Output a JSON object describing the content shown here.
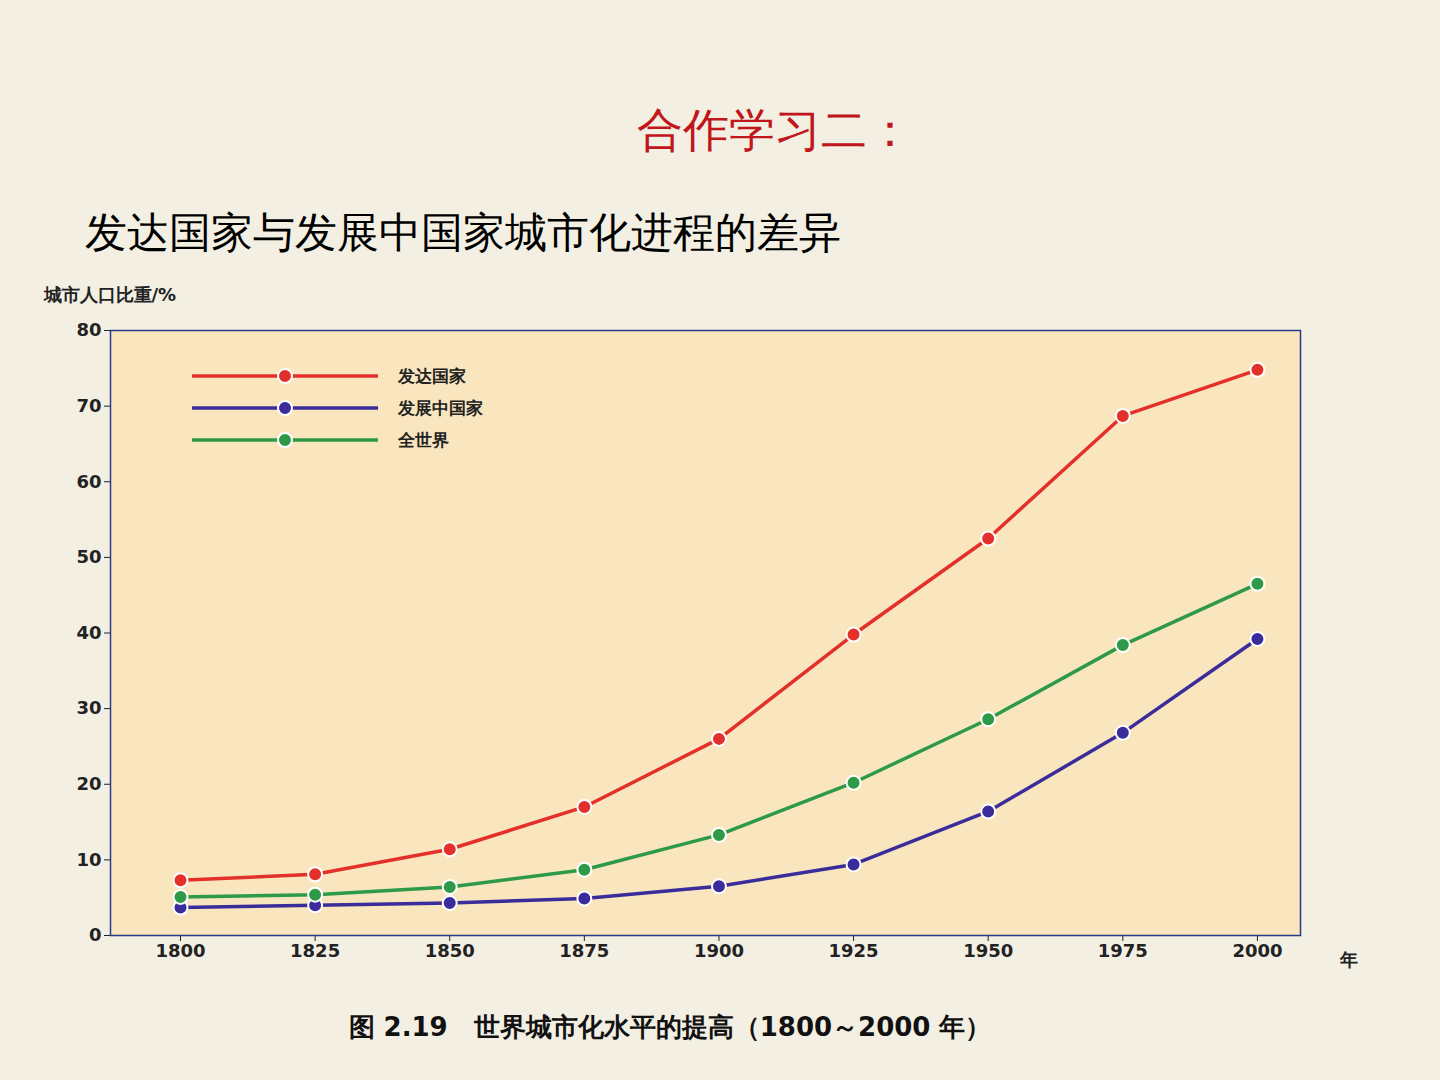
{
  "chart_data": {
    "type": "line",
    "title": "合作学习二：",
    "subtitle": "发达国家与发展中国家城市化进程的差异",
    "caption": "图 2.19　世界城市化水平的提高（1800～2000 年）",
    "x_label": "年",
    "y_label": "城市人口比重/%",
    "x": [
      1800,
      1825,
      1850,
      1875,
      1900,
      1925,
      1950,
      1975,
      2000
    ],
    "series": [
      {
        "name": "发达国家",
        "color": "#e3302a",
        "values": [
          7.3,
          8.1,
          11.4,
          17.0,
          26.0,
          39.8,
          52.5,
          68.7,
          74.8
        ]
      },
      {
        "name": "发展中国家",
        "color": "#3b2c9c",
        "values": [
          3.7,
          4.0,
          4.3,
          4.9,
          6.5,
          9.4,
          16.4,
          26.8,
          39.2
        ]
      },
      {
        "name": "全世界",
        "color": "#2e9a48",
        "values": [
          5.1,
          5.4,
          6.4,
          8.7,
          13.3,
          20.2,
          28.6,
          38.4,
          46.5
        ]
      }
    ],
    "xlim": [
      1787,
      2008
    ],
    "xticks": [
      1800,
      1825,
      1850,
      1875,
      1900,
      1925,
      1950,
      1975,
      2000
    ],
    "ylim": [
      0,
      80
    ],
    "yticks": [
      0,
      10,
      20,
      30,
      40,
      50,
      60,
      70,
      80
    ],
    "grid": false,
    "legend": "top-left",
    "marker": "circle"
  }
}
